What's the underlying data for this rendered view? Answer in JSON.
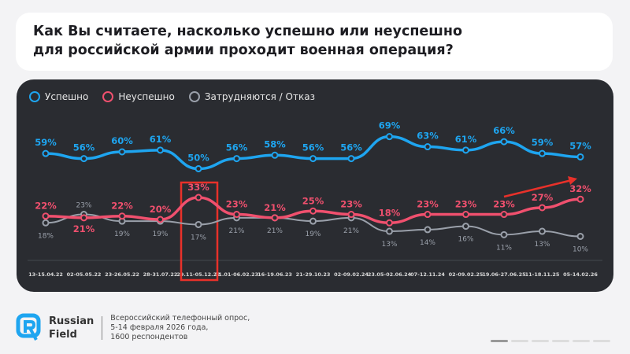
{
  "title": [
    "Как Вы считаете, насколько успешно или неуспешно",
    "для российской армии проходит военная операция?"
  ],
  "chart_data": {
    "type": "line",
    "categories": [
      "13-15.04.22",
      "02-05.05.22",
      "23-26.05.22",
      "28-31.07.22",
      "29.11-05.12.22",
      "31.01-06.02.23",
      "16-19.06.23",
      "21-29.10.23",
      "02-09.02.24",
      "23.05-02.06.24",
      "07-12.11.24",
      "02-09.02.25",
      "19.06-27.06.25",
      "11-18.11.25",
      "05-14.02.26"
    ],
    "series": [
      {
        "name": "Успешно",
        "color": "#1ea5f0",
        "values": [
          59,
          56,
          60,
          61,
          50,
          56,
          58,
          56,
          56,
          69,
          63,
          61,
          66,
          59,
          57
        ]
      },
      {
        "name": "Неуспешно",
        "color": "#f0506e",
        "values": [
          22,
          21,
          22,
          20,
          33,
          23,
          21,
          25,
          23,
          18,
          23,
          23,
          23,
          27,
          32
        ]
      },
      {
        "name": "Затрудняются / Отказ",
        "color": "#9aa0aa",
        "values": [
          18,
          23,
          19,
          19,
          17,
          21,
          21,
          19,
          21,
          13,
          14,
          16,
          11,
          13,
          10
        ]
      }
    ],
    "highlight_category": "29.11-05.12.22",
    "ylim": [
      0,
      75
    ],
    "unit": "%"
  },
  "footer": {
    "brand": [
      "Russian",
      "Field"
    ],
    "source": [
      "Всероссийский телефонный опрос,",
      "5-14 февраля 2026 года,",
      "1600 респондентов"
    ]
  }
}
